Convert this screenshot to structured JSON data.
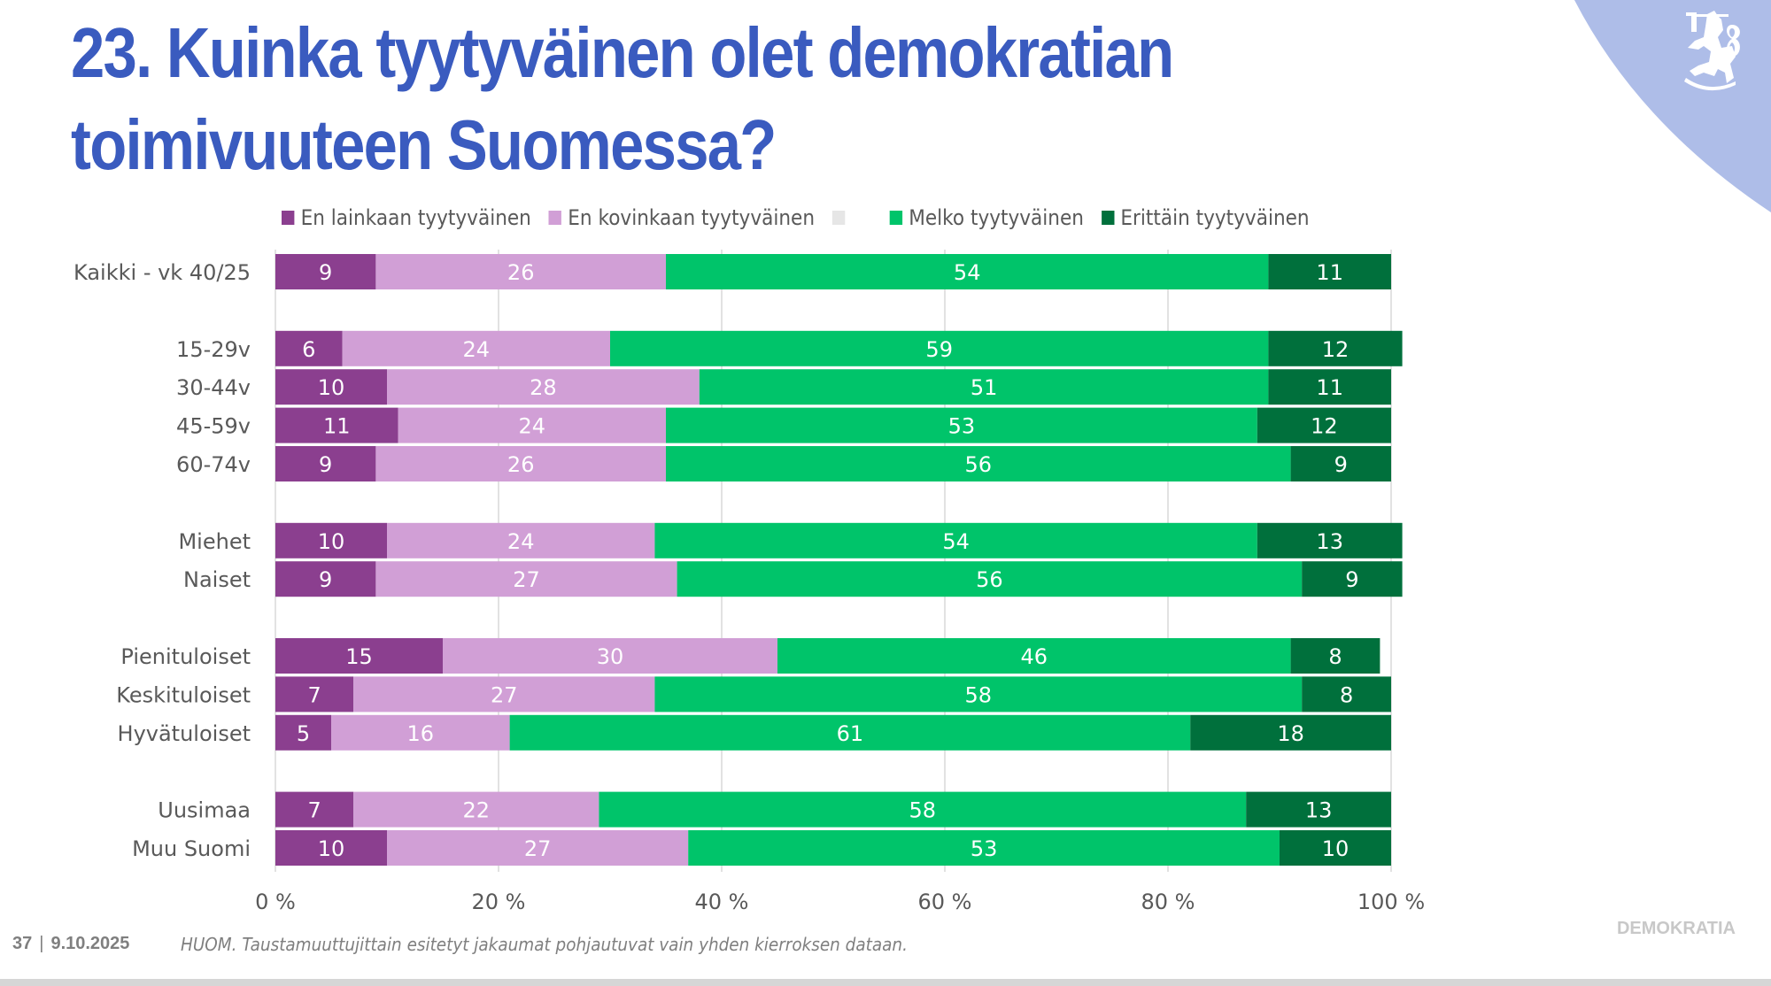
{
  "slide": {
    "title_line1": "23. Kuinka tyytyväinen olet demokratian",
    "title_line2": "toimivuuteen Suomessa?",
    "page_number": "37",
    "date": "9.10.2025",
    "note": "HUOM. Taustamuuttujittain esitetyt jakaumat pohjautuvat vain yhden kierroksen dataan.",
    "brand": "DEMOKRATIA",
    "accent_color": "#3a5bbf",
    "corner_color": "#aebde8",
    "logo_icon": "finnish-lion-crest-icon"
  },
  "chart_data": {
    "type": "bar",
    "orientation": "horizontal",
    "stacked": true,
    "title": "23. Kuinka tyytyväinen olet demokratian toimivuuteen Suomessa?",
    "xlabel": "",
    "ylabel": "",
    "xlim": [
      0,
      100
    ],
    "xticks": [
      "0 %",
      "20 %",
      "40 %",
      "60 %",
      "80 %",
      "100 %"
    ],
    "grid": true,
    "legend_position": "top",
    "categories": [
      "Kaikki - vk 40/25",
      "15-29v",
      "30-44v",
      "45-59v",
      "60-74v",
      "Miehet",
      "Naiset",
      "Pienituloiset",
      "Keskituloiset",
      "Hyvätuloiset",
      "Uusimaa",
      "Muu Suomi"
    ],
    "groups": [
      [
        0
      ],
      [
        1,
        2,
        3,
        4
      ],
      [
        5,
        6
      ],
      [
        7,
        8,
        9
      ],
      [
        10,
        11
      ]
    ],
    "series": [
      {
        "name": "En lainkaan tyytyväinen",
        "color": "#8b3f8f",
        "values": [
          9,
          6,
          10,
          11,
          9,
          10,
          9,
          15,
          7,
          5,
          7,
          10
        ]
      },
      {
        "name": "En kovinkaan tyytyväinen",
        "color": "#d19fd6",
        "values": [
          26,
          24,
          28,
          24,
          26,
          24,
          27,
          30,
          27,
          16,
          22,
          27
        ]
      },
      {
        "name": "",
        "color": "#e6e6e6",
        "values": [
          0,
          0,
          0,
          0,
          0,
          0,
          0,
          0,
          0,
          0,
          0,
          0
        ]
      },
      {
        "name": "Melko tyytyväinen",
        "color": "#00c46a",
        "values": [
          54,
          59,
          51,
          53,
          56,
          54,
          56,
          46,
          58,
          61,
          58,
          53
        ]
      },
      {
        "name": "Erittäin tyytyväinen",
        "color": "#00703c",
        "values": [
          11,
          12,
          11,
          12,
          9,
          13,
          9,
          8,
          8,
          18,
          13,
          10
        ]
      }
    ]
  }
}
